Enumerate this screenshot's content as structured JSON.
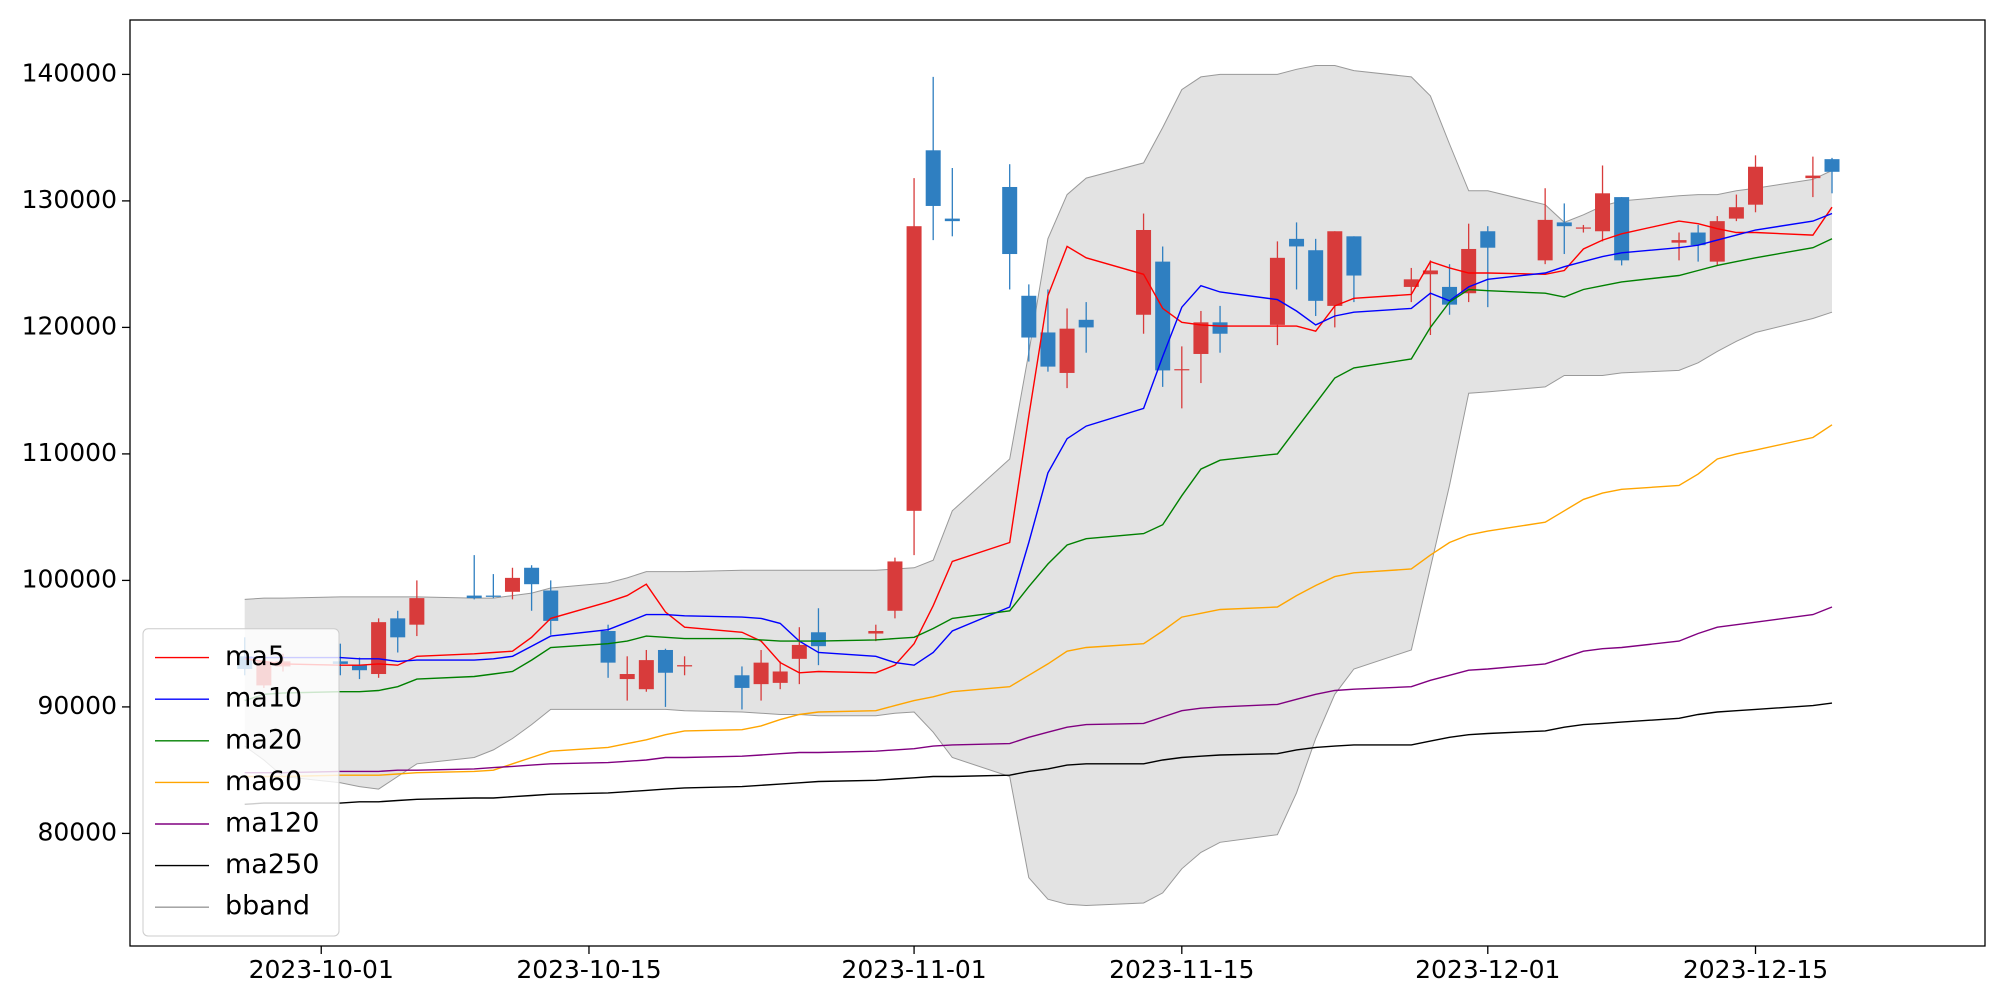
{
  "chart_data": {
    "type": "candlestick",
    "x": [
      "2023-09-27",
      "2023-09-28",
      "2023-09-29",
      "2023-10-02",
      "2023-10-03",
      "2023-10-04",
      "2023-10-05",
      "2023-10-06",
      "2023-10-09",
      "2023-10-10",
      "2023-10-11",
      "2023-10-12",
      "2023-10-13",
      "2023-10-16",
      "2023-10-17",
      "2023-10-18",
      "2023-10-19",
      "2023-10-20",
      "2023-10-23",
      "2023-10-24",
      "2023-10-25",
      "2023-10-26",
      "2023-10-27",
      "2023-10-30",
      "2023-10-31",
      "2023-11-01",
      "2023-11-02",
      "2023-11-03",
      "2023-11-06",
      "2023-11-07",
      "2023-11-08",
      "2023-11-09",
      "2023-11-10",
      "2023-11-13",
      "2023-11-14",
      "2023-11-15",
      "2023-11-16",
      "2023-11-17",
      "2023-11-20",
      "2023-11-21",
      "2023-11-22",
      "2023-11-23",
      "2023-11-24",
      "2023-11-27",
      "2023-11-28",
      "2023-11-29",
      "2023-11-30",
      "2023-12-01",
      "2023-12-04",
      "2023-12-05",
      "2023-12-06",
      "2023-12-07",
      "2023-12-08",
      "2023-12-11",
      "2023-12-12",
      "2023-12-13",
      "2023-12-14",
      "2023-12-15",
      "2023-12-18",
      "2023-12-19"
    ],
    "open": [
      94000,
      91700,
      93200,
      93600,
      93300,
      92600,
      97000,
      96500,
      98800,
      98800,
      99100,
      101000,
      99200,
      96000,
      92200,
      91400,
      94500,
      93200,
      92500,
      91800,
      91900,
      93800,
      95900,
      95800,
      97600,
      105500,
      134000,
      128600,
      131100,
      122500,
      119600,
      116400,
      120600,
      121000,
      125200,
      116700,
      117900,
      120400,
      120200,
      127000,
      126100,
      121700,
      127200,
      123200,
      124200,
      123200,
      122700,
      127600,
      125300,
      128300,
      127900,
      127600,
      130300,
      126700,
      127500,
      125200,
      128600,
      129700,
      131800,
      133300
    ],
    "high": [
      95500,
      93800,
      94200,
      95000,
      93900,
      97000,
      97600,
      100000,
      102000,
      100500,
      101000,
      101200,
      100000,
      96500,
      94000,
      94500,
      94600,
      94000,
      93200,
      94500,
      93600,
      96300,
      97800,
      96500,
      101800,
      131800,
      139800,
      132600,
      132900,
      123400,
      123000,
      121500,
      122000,
      129000,
      126400,
      118500,
      121300,
      121700,
      126800,
      128300,
      127000,
      127600,
      127200,
      124700,
      125300,
      125000,
      128200,
      128000,
      131000,
      129800,
      128100,
      132800,
      130300,
      127500,
      128100,
      128800,
      130500,
      133600,
      133500,
      133400
    ],
    "low": [
      92500,
      91500,
      92800,
      92500,
      92200,
      92300,
      94300,
      95600,
      98500,
      98600,
      98500,
      97600,
      95700,
      92300,
      90500,
      91200,
      90000,
      92500,
      89800,
      90500,
      91400,
      91800,
      93300,
      95200,
      97000,
      102000,
      126900,
      127200,
      123000,
      117300,
      116500,
      115200,
      118000,
      119500,
      115300,
      113600,
      115600,
      118000,
      118600,
      123000,
      120900,
      120000,
      122000,
      122000,
      119400,
      121000,
      122000,
      121600,
      125000,
      125800,
      127500,
      126800,
      124900,
      125300,
      125200,
      124900,
      128400,
      129100,
      130300,
      130600
    ],
    "close": [
      93000,
      93600,
      93600,
      93400,
      92900,
      96700,
      95500,
      98600,
      98600,
      98700,
      100200,
      99700,
      96800,
      93500,
      92600,
      93700,
      92700,
      93300,
      91500,
      93500,
      92800,
      94900,
      94800,
      96000,
      101500,
      128000,
      129600,
      128400,
      125800,
      119200,
      116900,
      119900,
      120000,
      127700,
      116600,
      116700,
      120400,
      119500,
      125500,
      126400,
      122100,
      127600,
      124100,
      123800,
      124500,
      121800,
      126200,
      126300,
      128500,
      128000,
      127900,
      130600,
      125300,
      126900,
      126500,
      128400,
      129500,
      132700,
      132000,
      132300
    ],
    "up_color": "#d83b3b",
    "down_color": "#2f7fc1",
    "series": [
      {
        "name": "ma5",
        "color": "#ff0000",
        "values": [
          93800,
          93600,
          93400,
          93300,
          93300,
          93400,
          93300,
          94000,
          94200,
          94300,
          94400,
          95500,
          97000,
          98300,
          98800,
          99700,
          97500,
          96300,
          95900,
          95200,
          93500,
          92700,
          92800,
          92700,
          93300,
          95000,
          98000,
          101500,
          103000,
          113000,
          122500,
          126400,
          125500,
          124200,
          121500,
          120400,
          120200,
          120100,
          120100,
          120100,
          119700,
          121700,
          122300,
          122600,
          125200,
          124700,
          124300,
          124300,
          124200,
          124500,
          126200,
          126900,
          127400,
          128400,
          128200,
          127800,
          127500,
          127500,
          127300,
          129500
        ]
      },
      {
        "name": "ma10",
        "color": "#0000ff",
        "values": [
          93900,
          93900,
          93900,
          93900,
          93800,
          93800,
          93600,
          93700,
          93700,
          93800,
          94000,
          94800,
          95600,
          96100,
          96700,
          97300,
          97300,
          97200,
          97100,
          97000,
          96600,
          95200,
          94300,
          94000,
          93500,
          93300,
          94300,
          96000,
          97900,
          103000,
          108500,
          111200,
          112200,
          113600,
          117700,
          121600,
          123300,
          122800,
          122200,
          121300,
          120200,
          120900,
          121200,
          121500,
          122700,
          122100,
          123200,
          123800,
          124300,
          124800,
          125200,
          125600,
          125900,
          126300,
          126500,
          126900,
          127300,
          127700,
          128400,
          129000
        ]
      },
      {
        "name": "ma20",
        "color": "#008000",
        "values": [
          90500,
          91000,
          91100,
          91200,
          91200,
          91300,
          91600,
          92200,
          92400,
          92600,
          92800,
          93700,
          94700,
          95000,
          95200,
          95600,
          95500,
          95400,
          95400,
          95300,
          95200,
          95200,
          95200,
          95300,
          95400,
          95500,
          96200,
          97000,
          97600,
          99500,
          101300,
          102800,
          103300,
          103700,
          104400,
          106700,
          108800,
          109500,
          110000,
          112000,
          114000,
          116000,
          116800,
          117500,
          120000,
          122000,
          123000,
          122900,
          122700,
          122400,
          123000,
          123300,
          123600,
          124100,
          124500,
          124900,
          125200,
          125500,
          126300,
          127000
        ]
      },
      {
        "name": "ma60",
        "color": "#ffa500",
        "values": [
          84500,
          84500,
          84500,
          84600,
          84600,
          84600,
          84700,
          84800,
          84900,
          85000,
          85500,
          86000,
          86500,
          86800,
          87100,
          87400,
          87800,
          88100,
          88200,
          88500,
          89000,
          89400,
          89600,
          89700,
          90100,
          90500,
          90800,
          91200,
          91600,
          92500,
          93400,
          94400,
          94700,
          95000,
          96000,
          97100,
          97400,
          97700,
          97900,
          98800,
          99600,
          100300,
          100600,
          100900,
          102000,
          103000,
          103600,
          103900,
          104600,
          105500,
          106400,
          106900,
          107200,
          107500,
          108400,
          109600,
          110000,
          110300,
          111300,
          112300
        ]
      },
      {
        "name": "ma120",
        "color": "#800080",
        "values": [
          84800,
          84800,
          84800,
          84900,
          84900,
          84900,
          85000,
          85000,
          85100,
          85200,
          85300,
          85400,
          85500,
          85600,
          85700,
          85800,
          86000,
          86000,
          86100,
          86200,
          86300,
          86400,
          86400,
          86500,
          86600,
          86700,
          86900,
          87000,
          87100,
          87600,
          88000,
          88400,
          88600,
          88700,
          89200,
          89700,
          89900,
          90000,
          90200,
          90600,
          91000,
          91300,
          91400,
          91600,
          92100,
          92500,
          92900,
          93000,
          93400,
          93900,
          94400,
          94600,
          94700,
          95200,
          95800,
          96300,
          96500,
          96700,
          97300,
          97900
        ]
      },
      {
        "name": "ma250",
        "color": "#000000",
        "values": [
          82300,
          82400,
          82400,
          82400,
          82500,
          82500,
          82600,
          82700,
          82800,
          82800,
          82900,
          83000,
          83100,
          83200,
          83300,
          83400,
          83500,
          83600,
          83700,
          83800,
          83900,
          84000,
          84100,
          84200,
          84300,
          84400,
          84500,
          84500,
          84600,
          84900,
          85100,
          85400,
          85500,
          85500,
          85800,
          86000,
          86100,
          86200,
          86300,
          86600,
          86800,
          86900,
          87000,
          87000,
          87300,
          87600,
          87800,
          87900,
          88100,
          88400,
          88600,
          88700,
          88800,
          89100,
          89400,
          89600,
          89700,
          89800,
          90100,
          90300
        ]
      }
    ],
    "band": {
      "name": "bband",
      "color": "#999999",
      "fill": "#e3e3e3",
      "upper": [
        98500,
        98600,
        98600,
        98700,
        98700,
        98700,
        98700,
        98700,
        98600,
        98600,
        98800,
        99000,
        99400,
        99800,
        100200,
        100700,
        100700,
        100700,
        100800,
        100800,
        100800,
        100800,
        100800,
        100800,
        100900,
        101000,
        101600,
        105500,
        109600,
        118000,
        127000,
        130500,
        131800,
        133000,
        135800,
        138800,
        139800,
        140000,
        140000,
        140400,
        140700,
        140700,
        140300,
        139800,
        138300,
        134500,
        130800,
        130800,
        129700,
        128300,
        128900,
        129600,
        130000,
        130400,
        130500,
        130500,
        130800,
        131000,
        131700,
        132400
      ],
      "lower": [
        86900,
        85800,
        84500,
        84000,
        83700,
        83500,
        84500,
        85500,
        86000,
        86600,
        87500,
        88600,
        89800,
        89800,
        89800,
        89800,
        89800,
        89700,
        89600,
        89500,
        89400,
        89400,
        89300,
        89300,
        89500,
        89600,
        88000,
        86000,
        84500,
        76500,
        74800,
        74400,
        74300,
        74500,
        75300,
        77200,
        78500,
        79300,
        79900,
        83200,
        87500,
        91000,
        93000,
        94500,
        101000,
        107500,
        114800,
        114900,
        115300,
        116200,
        116200,
        116200,
        116400,
        116600,
        117200,
        118100,
        118900,
        119600,
        120700,
        121200
      ]
    },
    "xlim": [
      "2023-09-21",
      "2023-12-27"
    ],
    "xticks": [
      "2023-10-01",
      "2023-10-15",
      "2023-11-01",
      "2023-11-15",
      "2023-12-01",
      "2023-12-15"
    ],
    "ylim": [
      71100,
      144300
    ],
    "yticks": [
      80000,
      90000,
      100000,
      110000,
      120000,
      130000,
      140000
    ],
    "legend": "lower left"
  }
}
